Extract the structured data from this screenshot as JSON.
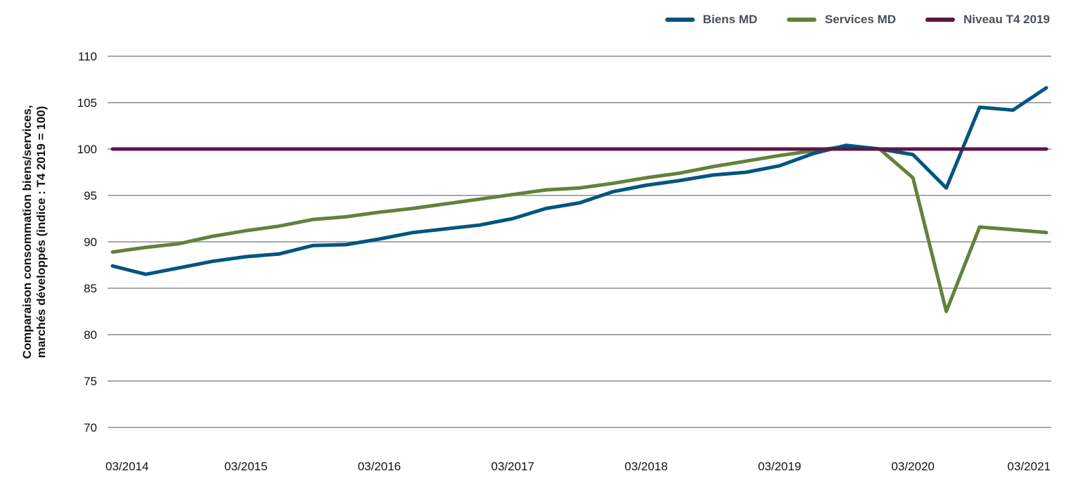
{
  "chart_data": {
    "type": "line",
    "title": "",
    "xlabel": "",
    "ylabel": "Comparaison consommation biens/services, marchés développés (indice : T4 2019 = 100)",
    "ylabel_lines": [
      "Comparaison consommation biens/services,",
      "marchés développés (indice : T4 2019 = 100)"
    ],
    "ylim": [
      70,
      110
    ],
    "yticks": [
      70,
      75,
      80,
      85,
      90,
      95,
      100,
      105,
      110
    ],
    "grid": true,
    "legend_position": "top-right",
    "x_tick_labels": [
      "03/2014",
      "03/2015",
      "03/2016",
      "03/2017",
      "03/2018",
      "03/2019",
      "03/2020",
      "03/2021"
    ],
    "x": [
      "03/2014",
      "06/2014",
      "09/2014",
      "12/2014",
      "03/2015",
      "06/2015",
      "09/2015",
      "12/2015",
      "03/2016",
      "06/2016",
      "09/2016",
      "12/2016",
      "03/2017",
      "06/2017",
      "09/2017",
      "12/2017",
      "03/2018",
      "06/2018",
      "09/2018",
      "12/2018",
      "03/2019",
      "06/2019",
      "09/2019",
      "12/2019",
      "03/2020",
      "06/2020",
      "09/2020",
      "12/2020",
      "03/2021"
    ],
    "series": [
      {
        "name": "Biens MD",
        "color": "#005581",
        "values": [
          87.4,
          86.5,
          87.2,
          87.9,
          88.4,
          88.7,
          89.6,
          89.7,
          90.3,
          91.0,
          91.4,
          91.8,
          92.5,
          93.6,
          94.2,
          95.4,
          96.1,
          96.6,
          97.2,
          97.5,
          98.2,
          99.5,
          100.4,
          100.0,
          99.4,
          95.8,
          104.5,
          104.2,
          106.6
        ]
      },
      {
        "name": "Services MD",
        "color": "#64813c",
        "values": [
          88.9,
          89.4,
          89.8,
          90.6,
          91.2,
          91.7,
          92.4,
          92.7,
          93.2,
          93.6,
          94.1,
          94.6,
          95.1,
          95.6,
          95.8,
          96.3,
          96.9,
          97.4,
          98.1,
          98.7,
          99.3,
          99.8,
          100.3,
          100.0,
          96.9,
          82.5,
          91.6,
          91.3,
          91.0
        ]
      },
      {
        "name": "Niveau T4 2019",
        "color": "#5b1645",
        "values": [
          100,
          100,
          100,
          100,
          100,
          100,
          100,
          100,
          100,
          100,
          100,
          100,
          100,
          100,
          100,
          100,
          100,
          100,
          100,
          100,
          100,
          100,
          100,
          100,
          100,
          100,
          100,
          100,
          100
        ]
      }
    ]
  }
}
